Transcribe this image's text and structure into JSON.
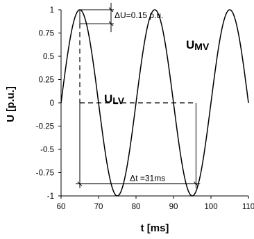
{
  "chart_data": {
    "type": "line",
    "title": "",
    "xlabel": "t [ms]",
    "ylabel": "U [p.u.]",
    "xlim": [
      60,
      110
    ],
    "ylim": [
      -1,
      1
    ],
    "x_ticks": [
      "60",
      "70",
      "80",
      "90",
      "100",
      "110"
    ],
    "y_ticks": [
      "1",
      "0.75",
      "0.5",
      "0.25",
      "0",
      "-0.25",
      "-0.5",
      "-0.75",
      "-1"
    ],
    "series": [
      {
        "name": "ULV",
        "x": [
          60,
          62.5,
          65,
          67.5,
          70,
          72.5,
          75,
          77.5,
          80,
          82.5,
          85,
          87.5,
          90,
          92.5,
          95,
          97.5,
          100,
          102.5,
          105,
          107.5,
          110
        ],
        "values": [
          0,
          0.71,
          1,
          0.71,
          0,
          -0.71,
          -1,
          -0.71,
          0,
          0.71,
          1,
          0.71,
          0,
          -0.71,
          -1,
          -0.71,
          0,
          0.71,
          1,
          0.71,
          0
        ]
      }
    ],
    "curve_labels": {
      "upper": "UMV",
      "lower": "ULV"
    },
    "annotations": {
      "delta_u": {
        "text": "ΔU=0.15 p.u.",
        "t": 65,
        "u_top": 1,
        "u_bottom": 0.85
      },
      "delta_t": {
        "text": "Δt =31ms",
        "t_start": 65,
        "t_end": 96,
        "u": -0.87
      }
    }
  }
}
